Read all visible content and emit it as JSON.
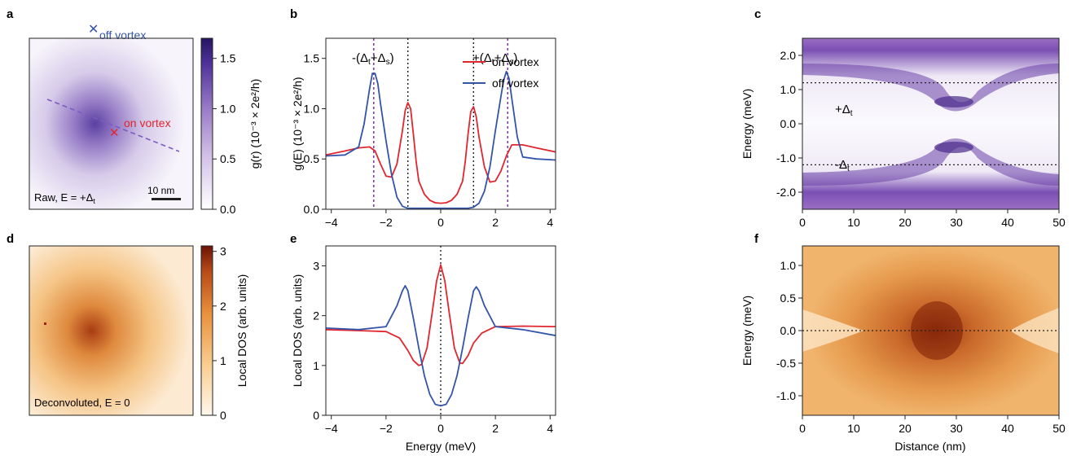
{
  "panel_labels": [
    "a",
    "b",
    "c",
    "d",
    "e",
    "f"
  ],
  "panel_a": {
    "marker_label": "off vortex",
    "on_label": "on vortex",
    "caption": "Raw, E = +Δ",
    "caption_sub": "t",
    "scalebar_label": "10 nm",
    "colorbar_label": "g(r) (10⁻³ × 2e²/h)",
    "colorbar_ticks": [
      "0.0",
      "0.5",
      "1.0",
      "1.5"
    ],
    "colorbar_max": 1.7,
    "colormap": [
      "#ffffff",
      "#d7c7ea",
      "#9d7cc8",
      "#5c3ea4",
      "#2a1870"
    ]
  },
  "panel_d": {
    "caption": "Deconvoluted, E = 0",
    "colorbar_label": "Local DOS (arb. units)",
    "colorbar_ticks": [
      "0",
      "1",
      "2",
      "3"
    ],
    "colorbar_max": 3.1,
    "colormap": [
      "#fff6ea",
      "#f8c98a",
      "#e9943f",
      "#c0561f",
      "#7a1a08"
    ]
  },
  "colors": {
    "on_vortex": "#e0262f",
    "off_vortex": "#3454a8",
    "delta_line": "#7b3fa0"
  },
  "chart_data": [
    {
      "panel": "b",
      "type": "line",
      "xlabel": "",
      "ylabel": "g(E) (10⁻³ × 2e²/h)",
      "xlim": [
        -4.2,
        4.2
      ],
      "ylim": [
        0,
        1.7
      ],
      "xticks": [
        -4,
        -2,
        0,
        2,
        4
      ],
      "xtick_labels": [
        "−4",
        "−2",
        "0",
        "2",
        "4"
      ],
      "yticks": [
        0,
        0.5,
        1.0,
        1.5
      ],
      "ytick_labels": [
        "0.0",
        "0.5",
        "1.0",
        "1.5"
      ],
      "vlines_black": [
        -1.2,
        1.2
      ],
      "vlines_delta": [
        -2.45,
        2.45
      ],
      "annotations": [
        "-(Δt+Δs)",
        "+(Δt+Δs)"
      ],
      "legend": [
        "on vortex",
        "off vortex"
      ],
      "legend_position": "top-center",
      "series": [
        {
          "name": "on vortex",
          "x": [
            -4.2,
            -3.5,
            -3.0,
            -2.6,
            -2.4,
            -2.2,
            -2.0,
            -1.8,
            -1.6,
            -1.4,
            -1.3,
            -1.2,
            -1.1,
            -1.0,
            -0.9,
            -0.8,
            -0.6,
            -0.4,
            -0.2,
            0,
            0.2,
            0.4,
            0.6,
            0.8,
            0.9,
            1.0,
            1.1,
            1.2,
            1.3,
            1.4,
            1.6,
            1.8,
            2.0,
            2.2,
            2.4,
            2.6,
            3.0,
            3.5,
            4.2
          ],
          "y": [
            0.54,
            0.58,
            0.61,
            0.62,
            0.58,
            0.45,
            0.33,
            0.32,
            0.45,
            0.78,
            0.98,
            1.06,
            1.0,
            0.75,
            0.48,
            0.28,
            0.15,
            0.09,
            0.065,
            0.06,
            0.065,
            0.09,
            0.15,
            0.28,
            0.48,
            0.75,
            0.97,
            1.02,
            0.92,
            0.72,
            0.42,
            0.27,
            0.28,
            0.38,
            0.53,
            0.64,
            0.64,
            0.61,
            0.57
          ]
        },
        {
          "name": "off vortex",
          "x": [
            -4.2,
            -3.5,
            -3.0,
            -2.8,
            -2.6,
            -2.5,
            -2.4,
            -2.3,
            -2.2,
            -2.0,
            -1.8,
            -1.6,
            -1.4,
            -1.2,
            -1.0,
            -0.5,
            0,
            0.5,
            1.0,
            1.2,
            1.4,
            1.6,
            1.8,
            2.0,
            2.2,
            2.3,
            2.4,
            2.5,
            2.6,
            2.8,
            3.0,
            3.5,
            4.2
          ],
          "y": [
            0.53,
            0.54,
            0.62,
            0.85,
            1.2,
            1.35,
            1.35,
            1.25,
            1.05,
            0.68,
            0.35,
            0.12,
            0.03,
            0.01,
            0.01,
            0.01,
            0.01,
            0.01,
            0.01,
            0.02,
            0.06,
            0.18,
            0.42,
            0.78,
            1.12,
            1.28,
            1.37,
            1.3,
            1.1,
            0.72,
            0.52,
            0.5,
            0.49
          ]
        }
      ]
    },
    {
      "panel": "e",
      "type": "line",
      "xlabel": "Energy (meV)",
      "ylabel": "Local DOS (arb. units)",
      "xlim": [
        -4.2,
        4.2
      ],
      "ylim": [
        0,
        3.4
      ],
      "xticks": [
        -4,
        -2,
        0,
        2,
        4
      ],
      "xtick_labels": [
        "−4",
        "−2",
        "0",
        "2",
        "4"
      ],
      "yticks": [
        0,
        1,
        2,
        3
      ],
      "ytick_labels": [
        "0",
        "1",
        "2",
        "3"
      ],
      "vlines_black": [
        0
      ],
      "series": [
        {
          "name": "on vortex",
          "x": [
            -4.2,
            -3.0,
            -2.0,
            -1.5,
            -1.2,
            -1.0,
            -0.8,
            -0.7,
            -0.5,
            -0.3,
            -0.15,
            0,
            0.15,
            0.3,
            0.5,
            0.7,
            0.8,
            1.0,
            1.2,
            1.5,
            2.0,
            3.0,
            4.2
          ],
          "y": [
            1.72,
            1.7,
            1.68,
            1.55,
            1.3,
            1.1,
            1.0,
            1.02,
            1.35,
            2.1,
            2.7,
            3.02,
            2.7,
            2.1,
            1.35,
            1.05,
            1.04,
            1.2,
            1.45,
            1.65,
            1.78,
            1.79,
            1.78
          ]
        },
        {
          "name": "off vortex",
          "x": [
            -4.2,
            -3.0,
            -2.0,
            -1.6,
            -1.4,
            -1.3,
            -1.2,
            -1.0,
            -0.8,
            -0.6,
            -0.4,
            -0.2,
            0,
            0.2,
            0.4,
            0.6,
            0.8,
            1.0,
            1.2,
            1.3,
            1.4,
            1.6,
            2.0,
            3.0,
            4.2
          ],
          "y": [
            1.75,
            1.72,
            1.78,
            2.2,
            2.5,
            2.6,
            2.5,
            1.95,
            1.35,
            0.8,
            0.42,
            0.22,
            0.19,
            0.22,
            0.42,
            0.8,
            1.35,
            1.95,
            2.5,
            2.58,
            2.5,
            2.2,
            1.78,
            1.72,
            1.6
          ]
        }
      ]
    },
    {
      "panel": "c",
      "type": "heatmap",
      "xlabel": "",
      "ylabel": "Energy (meV)",
      "xlim": [
        0,
        50
      ],
      "ylim": [
        -2.5,
        2.5
      ],
      "xticks": [
        0,
        10,
        20,
        30,
        40,
        50
      ],
      "yticks": [
        -2.0,
        -1.0,
        0.0,
        1.0,
        2.0
      ],
      "ytick_labels": [
        "-2.0",
        "-1.0",
        "0.0",
        "1.0",
        "2.0"
      ],
      "hlines": [
        1.2,
        -1.2
      ],
      "annotations": [
        "+Δt",
        "-Δt"
      ]
    },
    {
      "panel": "f",
      "type": "heatmap",
      "xlabel": "Distance (nm)",
      "ylabel": "Energy (meV)",
      "xlim": [
        0,
        50
      ],
      "ylim": [
        -1.3,
        1.3
      ],
      "xticks": [
        0,
        10,
        20,
        30,
        40,
        50
      ],
      "yticks": [
        -1.0,
        -0.5,
        0.0,
        0.5,
        1.0
      ],
      "ytick_labels": [
        "-1.0",
        "-0.5",
        "0.0",
        "0.5",
        "1.0"
      ],
      "hlines": [
        0
      ]
    }
  ]
}
